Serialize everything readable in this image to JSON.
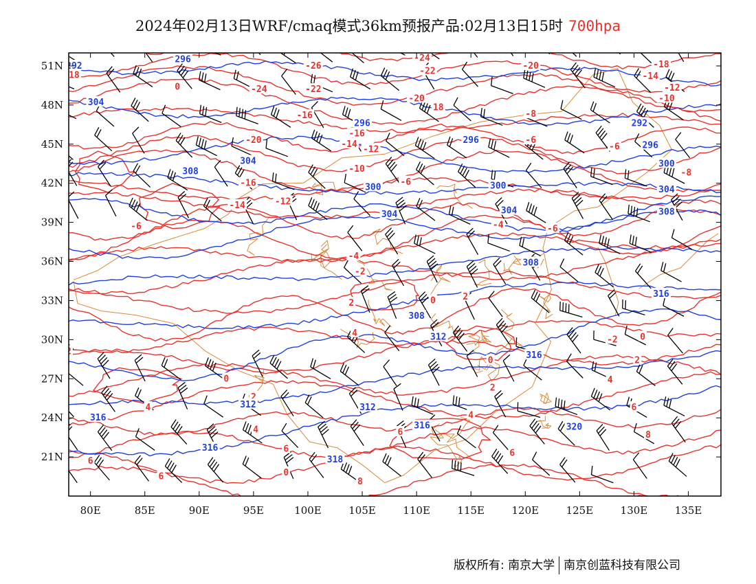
{
  "title": {
    "main": "2024年02月13日WRF/cmaq模式36km预报产品:02月13日15时",
    "level": "700hpa",
    "level_color": "#e8322c"
  },
  "map": {
    "x_ticks": [
      "80E",
      "85E",
      "90E",
      "95E",
      "100E",
      "105E",
      "110E",
      "115E",
      "120E",
      "125E",
      "130E",
      "135E"
    ],
    "y_ticks": [
      "51N",
      "48N",
      "45N",
      "42N",
      "39N",
      "36N",
      "33N",
      "30N",
      "27N",
      "24N",
      "21N"
    ],
    "lon_range": [
      78,
      138
    ],
    "lat_range": [
      18,
      52
    ],
    "fields": [
      {
        "name": "temperature-contours",
        "color": "#e8322c"
      },
      {
        "name": "geopotential-height-contours",
        "color": "#1f3fe0"
      },
      {
        "name": "wind-barbs",
        "color": "#000000"
      },
      {
        "name": "boundaries",
        "color": "#d98b3a"
      }
    ],
    "height_labels": [
      {
        "text": "296",
        "lon": 88.5,
        "lat": 51.5
      },
      {
        "text": "292",
        "lon": 78.5,
        "lat": 51.0
      },
      {
        "text": "304",
        "lon": 80.5,
        "lat": 48.2
      },
      {
        "text": "296",
        "lon": 105.0,
        "lat": 46.6
      },
      {
        "text": "296",
        "lon": 115.0,
        "lat": 45.3
      },
      {
        "text": "292",
        "lon": 130.5,
        "lat": 46.6
      },
      {
        "text": "296",
        "lon": 131.5,
        "lat": 44.9
      },
      {
        "text": "300",
        "lon": 133.0,
        "lat": 43.5
      },
      {
        "text": "304",
        "lon": 94.5,
        "lat": 43.7
      },
      {
        "text": "308",
        "lon": 89.2,
        "lat": 42.9
      },
      {
        "text": "300",
        "lon": 106.0,
        "lat": 41.7
      },
      {
        "text": "300",
        "lon": 117.5,
        "lat": 41.8
      },
      {
        "text": "304",
        "lon": 133.0,
        "lat": 41.5
      },
      {
        "text": "304",
        "lon": 118.5,
        "lat": 39.9
      },
      {
        "text": "304",
        "lon": 107.5,
        "lat": 39.6
      },
      {
        "text": "308",
        "lon": 133.0,
        "lat": 39.8
      },
      {
        "text": "308",
        "lon": 120.5,
        "lat": 35.9
      },
      {
        "text": "316",
        "lon": 132.5,
        "lat": 33.5
      },
      {
        "text": "308",
        "lon": 110.0,
        "lat": 31.8
      },
      {
        "text": "312",
        "lon": 112.0,
        "lat": 30.2
      },
      {
        "text": "316",
        "lon": 120.8,
        "lat": 28.8
      },
      {
        "text": "312",
        "lon": 105.5,
        "lat": 24.8
      },
      {
        "text": "316",
        "lon": 110.5,
        "lat": 23.4
      },
      {
        "text": "320",
        "lon": 124.5,
        "lat": 23.3
      },
      {
        "text": "316",
        "lon": 80.7,
        "lat": 24.0
      },
      {
        "text": "316",
        "lon": 91.0,
        "lat": 21.7
      },
      {
        "text": "318",
        "lon": 102.5,
        "lat": 20.8
      },
      {
        "text": "312",
        "lon": 94.5,
        "lat": 25.0
      }
    ],
    "temp_labels": [
      {
        "text": "18",
        "lon": 78.5,
        "lat": 50.3
      },
      {
        "text": "0",
        "lon": 88.0,
        "lat": 49.4
      },
      {
        "text": "-26",
        "lon": 100.5,
        "lat": 51.0
      },
      {
        "text": "-24",
        "lon": 110.5,
        "lat": 51.6
      },
      {
        "text": "-22",
        "lon": 111.0,
        "lat": 50.6
      },
      {
        "text": "-20",
        "lon": 120.5,
        "lat": 51.0
      },
      {
        "text": "-18",
        "lon": 132.5,
        "lat": 51.1
      },
      {
        "text": "-14",
        "lon": 131.5,
        "lat": 50.2
      },
      {
        "text": "-12",
        "lon": 133.5,
        "lat": 49.3
      },
      {
        "text": "-10",
        "lon": 133.0,
        "lat": 48.5
      },
      {
        "text": "-8",
        "lon": 134.8,
        "lat": 42.8
      },
      {
        "text": "-24",
        "lon": 95.5,
        "lat": 49.2
      },
      {
        "text": "-22",
        "lon": 100.5,
        "lat": 49.2
      },
      {
        "text": "-20",
        "lon": 110.0,
        "lat": 48.5
      },
      {
        "text": "18",
        "lon": 112.0,
        "lat": 47.8
      },
      {
        "text": "-16",
        "lon": 99.7,
        "lat": 47.2
      },
      {
        "text": "-16",
        "lon": 104.5,
        "lat": 45.8
      },
      {
        "text": "-14",
        "lon": 103.8,
        "lat": 45.0
      },
      {
        "text": "-12",
        "lon": 105.8,
        "lat": 44.6
      },
      {
        "text": "-20",
        "lon": 95.0,
        "lat": 45.3
      },
      {
        "text": "-10",
        "lon": 104.5,
        "lat": 43.1
      },
      {
        "text": "-6",
        "lon": 109.0,
        "lat": 42.1
      },
      {
        "text": "-6",
        "lon": 120.5,
        "lat": 45.3
      },
      {
        "text": "-6",
        "lon": 128.2,
        "lat": 44.8
      },
      {
        "text": "-8",
        "lon": 120.5,
        "lat": 47.3
      },
      {
        "text": "-16",
        "lon": 94.5,
        "lat": 42.0
      },
      {
        "text": "-14",
        "lon": 93.5,
        "lat": 40.3
      },
      {
        "text": "-12",
        "lon": 97.7,
        "lat": 40.6
      },
      {
        "text": "-6",
        "lon": 84.2,
        "lat": 38.7
      },
      {
        "text": "-4",
        "lon": 117.5,
        "lat": 38.8
      },
      {
        "text": "-6",
        "lon": 122.5,
        "lat": 38.5
      },
      {
        "text": "-4",
        "lon": 104.2,
        "lat": 36.4
      },
      {
        "text": "-2",
        "lon": 104.8,
        "lat": 35.2
      },
      {
        "text": "2",
        "lon": 104.0,
        "lat": 32.8
      },
      {
        "text": "0",
        "lon": 111.5,
        "lat": 33.0
      },
      {
        "text": "2",
        "lon": 114.5,
        "lat": 33.3
      },
      {
        "text": "4",
        "lon": 104.3,
        "lat": 30.5
      },
      {
        "text": "0",
        "lon": 116.8,
        "lat": 28.4
      },
      {
        "text": "2",
        "lon": 117.0,
        "lat": 26.3
      },
      {
        "text": "-2",
        "lon": 128.0,
        "lat": 30.0
      },
      {
        "text": "0",
        "lon": 130.8,
        "lat": 30.2
      },
      {
        "text": "2",
        "lon": 130.3,
        "lat": 28.4
      },
      {
        "text": "4",
        "lon": 127.8,
        "lat": 26.9
      },
      {
        "text": "6",
        "lon": 130.0,
        "lat": 24.8
      },
      {
        "text": "8",
        "lon": 131.3,
        "lat": 22.7
      },
      {
        "text": "4",
        "lon": 115.0,
        "lat": 24.2
      },
      {
        "text": "6",
        "lon": 118.8,
        "lat": 21.3
      },
      {
        "text": "6",
        "lon": 108.5,
        "lat": 22.9
      },
      {
        "text": "8",
        "lon": 104.8,
        "lat": 19.1
      },
      {
        "text": "6",
        "lon": 86.5,
        "lat": 19.5
      },
      {
        "text": "6",
        "lon": 80.0,
        "lat": 20.7
      },
      {
        "text": "4",
        "lon": 85.3,
        "lat": 24.8
      },
      {
        "text": "2",
        "lon": 95.0,
        "lat": 25.6
      },
      {
        "text": "4",
        "lon": 95.2,
        "lat": 23.1
      },
      {
        "text": "6",
        "lon": 98.0,
        "lat": 21.6
      },
      {
        "text": "0",
        "lon": 98.0,
        "lat": 19.8
      },
      {
        "text": "0",
        "lon": 92.5,
        "lat": 27.0
      },
      {
        "text": "2",
        "lon": 78.0,
        "lat": 29.1
      }
    ]
  },
  "footer": {
    "left": "版权所有: 南京大学",
    "right": "南京创蓝科技有限公司"
  }
}
